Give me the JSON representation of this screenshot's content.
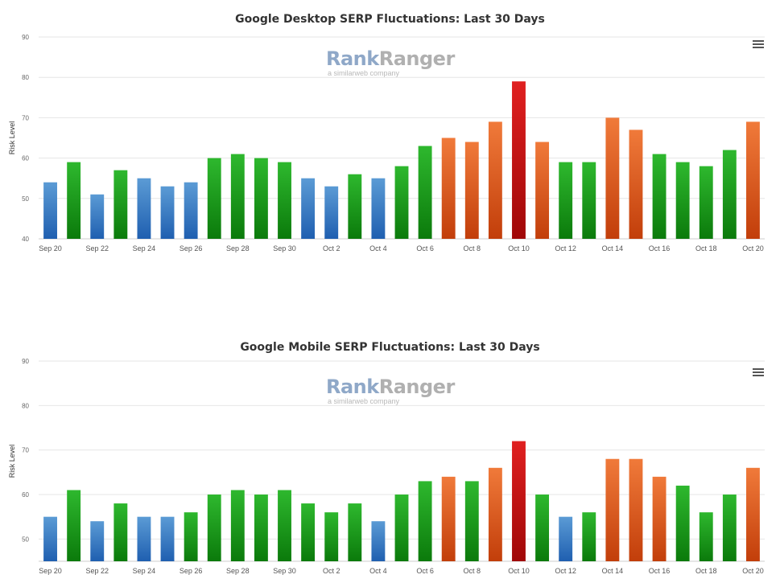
{
  "chart_data": [
    {
      "type": "bar",
      "title": "Google Desktop SERP Fluctuations: Last 30 Days",
      "ylabel": "Risk Level",
      "ylim": [
        40,
        90
      ],
      "yticks": [
        40,
        50,
        60,
        70,
        80,
        90
      ],
      "grid": true,
      "watermark": {
        "name_part1": "Rank",
        "name_part2": "Ranger",
        "tagline": "a similarweb company"
      },
      "categories": [
        "Sep 20",
        "Sep 21",
        "Sep 22",
        "Sep 23",
        "Sep 24",
        "Sep 25",
        "Sep 26",
        "Sep 27",
        "Sep 28",
        "Sep 29",
        "Sep 30",
        "Oct 1",
        "Oct 2",
        "Oct 3",
        "Oct 4",
        "Oct 5",
        "Oct 6",
        "Oct 7",
        "Oct 8",
        "Oct 9",
        "Oct 10",
        "Oct 11",
        "Oct 12",
        "Oct 13",
        "Oct 14",
        "Oct 15",
        "Oct 16",
        "Oct 17",
        "Oct 18",
        "Oct 19",
        "Oct 20"
      ],
      "xtick_labels": [
        "Sep 20",
        "Sep 22",
        "Sep 24",
        "Sep 26",
        "Sep 28",
        "Sep 30",
        "Oct 2",
        "Oct 4",
        "Oct 6",
        "Oct 8",
        "Oct 10",
        "Oct 12",
        "Oct 14",
        "Oct 16",
        "Oct 18",
        "Oct 20"
      ],
      "values": [
        54,
        59,
        51,
        57,
        55,
        53,
        54,
        60,
        61,
        60,
        59,
        55,
        53,
        56,
        55,
        58,
        63,
        65,
        64,
        69,
        79,
        64,
        59,
        59,
        70,
        67,
        61,
        59,
        58,
        62,
        69
      ]
    },
    {
      "type": "bar",
      "title": "Google Mobile SERP Fluctuations: Last 30 Days",
      "ylabel": "Risk Level",
      "ylim": [
        45,
        90
      ],
      "yticks": [
        50,
        60,
        70,
        80,
        90
      ],
      "grid": true,
      "watermark": {
        "name_part1": "Rank",
        "name_part2": "Ranger",
        "tagline": "a similarweb company"
      },
      "categories": [
        "Sep 20",
        "Sep 21",
        "Sep 22",
        "Sep 23",
        "Sep 24",
        "Sep 25",
        "Sep 26",
        "Sep 27",
        "Sep 28",
        "Sep 29",
        "Sep 30",
        "Oct 1",
        "Oct 2",
        "Oct 3",
        "Oct 4",
        "Oct 5",
        "Oct 6",
        "Oct 7",
        "Oct 8",
        "Oct 9",
        "Oct 10",
        "Oct 11",
        "Oct 12",
        "Oct 13",
        "Oct 14",
        "Oct 15",
        "Oct 16",
        "Oct 17",
        "Oct 18",
        "Oct 19",
        "Oct 20"
      ],
      "xtick_labels": [
        "Sep 20",
        "Sep 22",
        "Sep 24",
        "Sep 26",
        "Sep 28",
        "Sep 30",
        "Oct 2",
        "Oct 4",
        "Oct 6",
        "Oct 8",
        "Oct 10",
        "Oct 12",
        "Oct 14",
        "Oct 16",
        "Oct 18",
        "Oct 20"
      ],
      "values": [
        55,
        61,
        54,
        58,
        55,
        55,
        56,
        60,
        61,
        60,
        61,
        58,
        56,
        58,
        54,
        60,
        63,
        64,
        63,
        66,
        72,
        60,
        55,
        56,
        68,
        68,
        64,
        62,
        56,
        60,
        66
      ]
    }
  ],
  "color_bands": {
    "blue": {
      "max": 55,
      "top": "#5b9bd5",
      "bottom": "#1f5fb0"
    },
    "green": {
      "max": 63,
      "top": "#2eb82e",
      "bottom": "#0b7a0b"
    },
    "orange": {
      "max": 71,
      "top": "#f07a3a",
      "bottom": "#c23e0a"
    },
    "red": {
      "max": 999,
      "top": "#e02020",
      "bottom": "#a00808"
    }
  }
}
